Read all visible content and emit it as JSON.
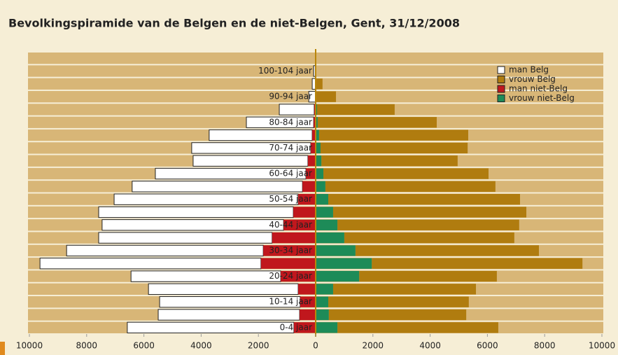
{
  "chart_data": {
    "type": "pyramid",
    "title": "Bevolkingspiramide van de Belgen en de niet-Belgen, Gent, 31/12/2008",
    "categories": [
      "0-4 jaar",
      null,
      "10-14 jaar",
      null,
      "20-24 jaar",
      null,
      "30-34 jaar",
      null,
      "40-44 jaar",
      null,
      "50-54 jaar",
      null,
      "60-64 jaar",
      null,
      "70-74 jaar",
      null,
      "80-84 jaar",
      null,
      "90-94 jaar",
      null,
      "100-104 jaar"
    ],
    "series": [
      {
        "name": "man Belg",
        "color": "#ffffff",
        "values": [
          5820,
          4940,
          4910,
          5230,
          5230,
          7720,
          6870,
          6060,
          6340,
          6800,
          6430,
          5950,
          5260,
          4010,
          4160,
          3600,
          2350,
          1220,
          240,
          120,
          70
        ]
      },
      {
        "name": "vrouw Belg",
        "color": "#b07c0f",
        "values": [
          5620,
          4800,
          4910,
          4990,
          4810,
          7360,
          6410,
          5940,
          6350,
          6750,
          6700,
          5940,
          5770,
          4760,
          5140,
          5210,
          4160,
          2710,
          710,
          240,
          20
        ]
      },
      {
        "name": "man niet-Belg",
        "color": "#c0171d",
        "values": [
          760,
          560,
          540,
          610,
          1220,
          1910,
          1830,
          1520,
          1120,
          780,
          610,
          460,
          340,
          270,
          170,
          120,
          70,
          50,
          0,
          0,
          0
        ]
      },
      {
        "name": "vrouw niet-Belg",
        "color": "#1d8b58",
        "values": [
          760,
          460,
          440,
          610,
          1520,
          1960,
          1390,
          1000,
          760,
          610,
          440,
          340,
          270,
          200,
          170,
          120,
          70,
          50,
          0,
          0,
          0
        ]
      }
    ],
    "xlim": [
      -10000,
      10000
    ],
    "xticks": [
      {
        "value": -10000,
        "label": "10000"
      },
      {
        "value": -8000,
        "label": "8000"
      },
      {
        "value": -6000,
        "label": "6000"
      },
      {
        "value": -4000,
        "label": "4000"
      },
      {
        "value": -2000,
        "label": "2000"
      },
      0,
      2000,
      4000,
      6000,
      8000,
      10000
    ],
    "legend": "top-right"
  }
}
